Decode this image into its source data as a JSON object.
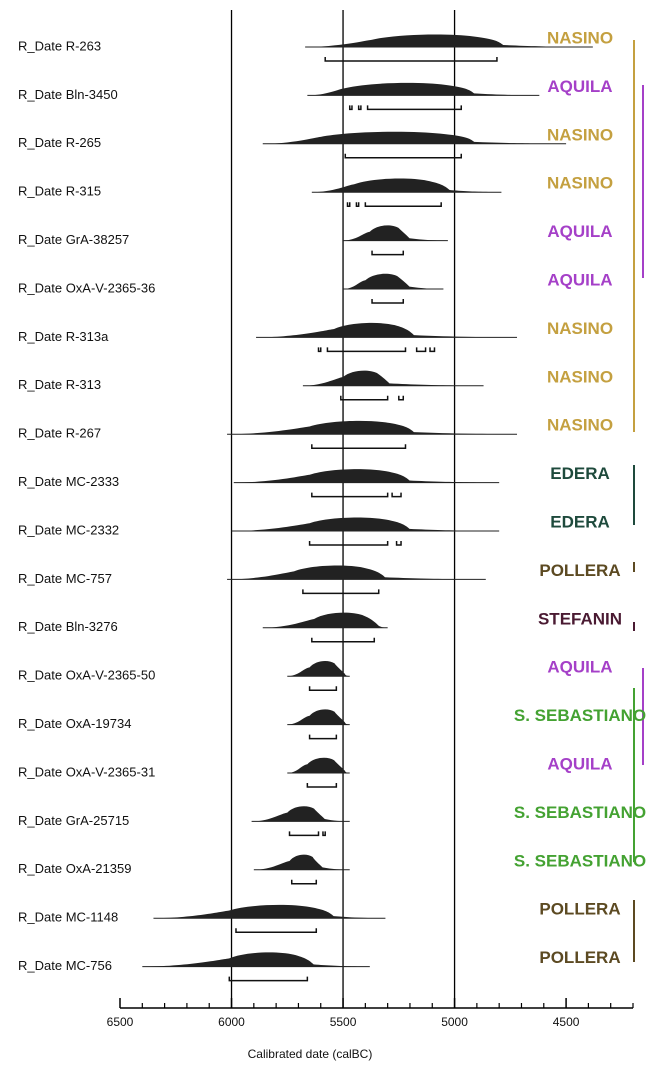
{
  "chart_data": {
    "type": "range",
    "x_label": "Calibrated date (calBC)",
    "xlim": [
      6500,
      4200
    ],
    "xticks": [
      6500,
      6000,
      5500,
      5000,
      4500
    ],
    "xminorticks": [
      6400,
      6300,
      6200,
      6100,
      5900,
      5800,
      5700,
      5600,
      5400,
      5300,
      5200,
      5100,
      4900,
      4800,
      4700,
      4600,
      4400,
      4300,
      4200
    ],
    "gridlines": [
      6000,
      5500,
      5000
    ],
    "series": [
      {
        "name": "R_Date R-263",
        "group": "NASINO",
        "color": "#c4a040",
        "range": [
          5670,
          4380
        ],
        "body": [
          5370,
          4800
        ],
        "hpd": [
          [
            5580,
            4810
          ]
        ]
      },
      {
        "name": "R_Date Bln-3450",
        "group": "AQUILA",
        "color": "#a540c8",
        "range": [
          5660,
          4620
        ],
        "body": [
          5490,
          4930
        ],
        "hpd": [
          [
            5470,
            5460
          ],
          [
            5430,
            5420
          ],
          [
            5390,
            4970
          ]
        ]
      },
      {
        "name": "R_Date R-265",
        "group": "NASINO",
        "color": "#c4a040",
        "range": [
          5860,
          4500
        ],
        "body": [
          5600,
          4930
        ],
        "hpd": [
          [
            5490,
            4970
          ]
        ]
      },
      {
        "name": "R_Date R-315",
        "group": "NASINO",
        "color": "#c4a040",
        "range": [
          5640,
          4790
        ],
        "body": [
          5450,
          5040
        ],
        "hpd": [
          [
            5480,
            5470
          ],
          [
            5440,
            5430
          ],
          [
            5400,
            5060
          ]
        ]
      },
      {
        "name": "R_Date GrA-38257",
        "group": "AQUILA",
        "color": "#a540c8",
        "range": [
          5500,
          5030
        ],
        "body": [
          5380,
          5220
        ],
        "hpd": [
          [
            5370,
            5230
          ]
        ]
      },
      {
        "name": "R_Date OxA-V-2365-36",
        "group": "AQUILA",
        "color": "#a540c8",
        "range": [
          5500,
          5050
        ],
        "body": [
          5400,
          5220
        ],
        "hpd": [
          [
            5370,
            5230
          ]
        ]
      },
      {
        "name": "R_Date R-313a",
        "group": "NASINO",
        "color": "#c4a040",
        "range": [
          5890,
          4720
        ],
        "body": [
          5540,
          5200
        ],
        "hpd": [
          [
            5610,
            5600
          ],
          [
            5570,
            5220
          ],
          [
            5170,
            5130
          ],
          [
            5110,
            5090
          ]
        ]
      },
      {
        "name": "R_Date R-313",
        "group": "NASINO",
        "color": "#c4a040",
        "range": [
          5680,
          4870
        ],
        "body": [
          5500,
          5310
        ],
        "hpd": [
          [
            5510,
            5300
          ],
          [
            5250,
            5230
          ]
        ]
      },
      {
        "name": "R_Date R-267",
        "group": "NASINO",
        "color": "#c4a040",
        "range": [
          6020,
          4720
        ],
        "body": [
          5650,
          5200
        ],
        "hpd": [
          [
            5640,
            5220
          ]
        ]
      },
      {
        "name": "R_Date MC-2333",
        "group": "EDERA",
        "color": "#1e4a3c",
        "range": [
          5990,
          4800
        ],
        "body": [
          5650,
          5220
        ],
        "hpd": [
          [
            5640,
            5300
          ],
          [
            5280,
            5240
          ]
        ]
      },
      {
        "name": "R_Date MC-2332",
        "group": "EDERA",
        "color": "#1e4a3c",
        "range": [
          6000,
          4800
        ],
        "body": [
          5650,
          5220
        ],
        "hpd": [
          [
            5650,
            5300
          ],
          [
            5260,
            5240
          ]
        ]
      },
      {
        "name": "R_Date MC-757",
        "group": "POLLERA",
        "color": "#5c4a22",
        "range": [
          6020,
          4860
        ],
        "body": [
          5720,
          5330
        ],
        "hpd": [
          [
            5680,
            5340
          ]
        ]
      },
      {
        "name": "R_Date Bln-3276",
        "group": "STEFANIN",
        "color": "#4a1a32",
        "range": [
          5860,
          5300
        ],
        "body": [
          5630,
          5360
        ],
        "hpd": [
          [
            5640,
            5360
          ]
        ]
      },
      {
        "name": "R_Date OxA-V-2365-50",
        "group": "AQUILA",
        "color": "#a540c8",
        "range": [
          5750,
          5470
        ],
        "body": [
          5650,
          5510
        ],
        "hpd": [
          [
            5650,
            5530
          ]
        ]
      },
      {
        "name": "R_Date OxA-19734",
        "group": "S. SEBASTIANO",
        "color": "#44a232",
        "range": [
          5750,
          5470
        ],
        "body": [
          5650,
          5510
        ],
        "hpd": [
          [
            5650,
            5530
          ]
        ]
      },
      {
        "name": "R_Date OxA-V-2365-31",
        "group": "AQUILA",
        "color": "#a540c8",
        "range": [
          5750,
          5470
        ],
        "body": [
          5660,
          5510
        ],
        "hpd": [
          [
            5660,
            5530
          ]
        ]
      },
      {
        "name": "R_Date GrA-25715",
        "group": "S. SEBASTIANO",
        "color": "#44a232",
        "range": [
          5910,
          5470
        ],
        "body": [
          5750,
          5600
        ],
        "hpd": [
          [
            5740,
            5610
          ],
          [
            5590,
            5580
          ]
        ]
      },
      {
        "name": "R_Date OxA-21359",
        "group": "S. SEBASTIANO",
        "color": "#44a232",
        "range": [
          5900,
          5470
        ],
        "body": [
          5740,
          5610
        ],
        "hpd": [
          [
            5730,
            5620
          ]
        ]
      },
      {
        "name": "R_Date MC-1148",
        "group": "POLLERA",
        "color": "#5c4a22",
        "range": [
          6350,
          5310
        ],
        "body": [
          6010,
          5560
        ],
        "hpd": [
          [
            5980,
            5620
          ]
        ]
      },
      {
        "name": "R_Date MC-756",
        "group": "POLLERA",
        "color": "#5c4a22",
        "range": [
          6400,
          5380
        ],
        "body": [
          6010,
          5650
        ],
        "hpd": [
          [
            6010,
            5660
          ]
        ]
      }
    ]
  }
}
